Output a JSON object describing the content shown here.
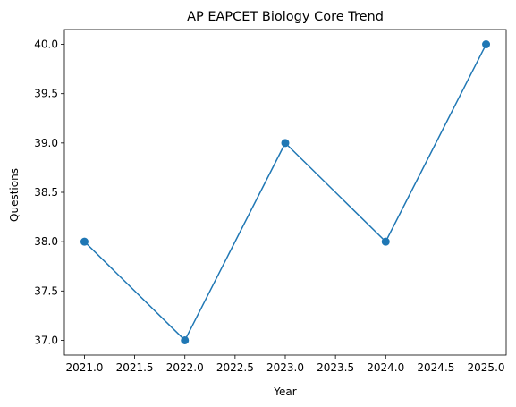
{
  "chart_data": {
    "type": "line",
    "title": "AP EAPCET Biology Core Trend",
    "xlabel": "Year",
    "ylabel": "Questions",
    "xlim": [
      2020.8,
      2025.2
    ],
    "ylim": [
      36.85,
      40.15
    ],
    "xticks": [
      2021.0,
      2021.5,
      2022.0,
      2022.5,
      2023.0,
      2023.5,
      2024.0,
      2024.5,
      2025.0
    ],
    "yticks": [
      37.0,
      37.5,
      38.0,
      38.5,
      39.0,
      39.5,
      40.0
    ],
    "grid": false,
    "series": [
      {
        "x": [
          2021,
          2022,
          2023,
          2024,
          2025
        ],
        "y": [
          38,
          37,
          39,
          38,
          40
        ],
        "color": "#1f77b4",
        "marker": "circle"
      }
    ]
  }
}
